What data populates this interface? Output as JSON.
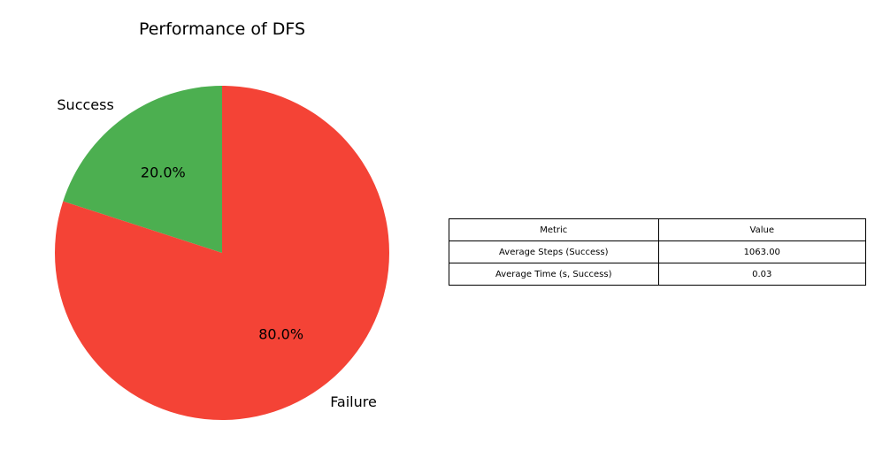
{
  "chart_data": [
    {
      "type": "pie",
      "title": "Performance of DFS",
      "slices": [
        {
          "label": "Success",
          "value": 20.0,
          "pct_label": "20.0%",
          "color": "#4caf50"
        },
        {
          "label": "Failure",
          "value": 80.0,
          "pct_label": "80.0%",
          "color": "#f44336"
        }
      ],
      "start_angle": "top, counter-clockwise"
    },
    {
      "type": "table",
      "columns": [
        "Metric",
        "Value"
      ],
      "rows": [
        [
          "Average Steps (Success)",
          "1063.00"
        ],
        [
          "Average Time (s, Success)",
          "0.03"
        ]
      ]
    }
  ]
}
